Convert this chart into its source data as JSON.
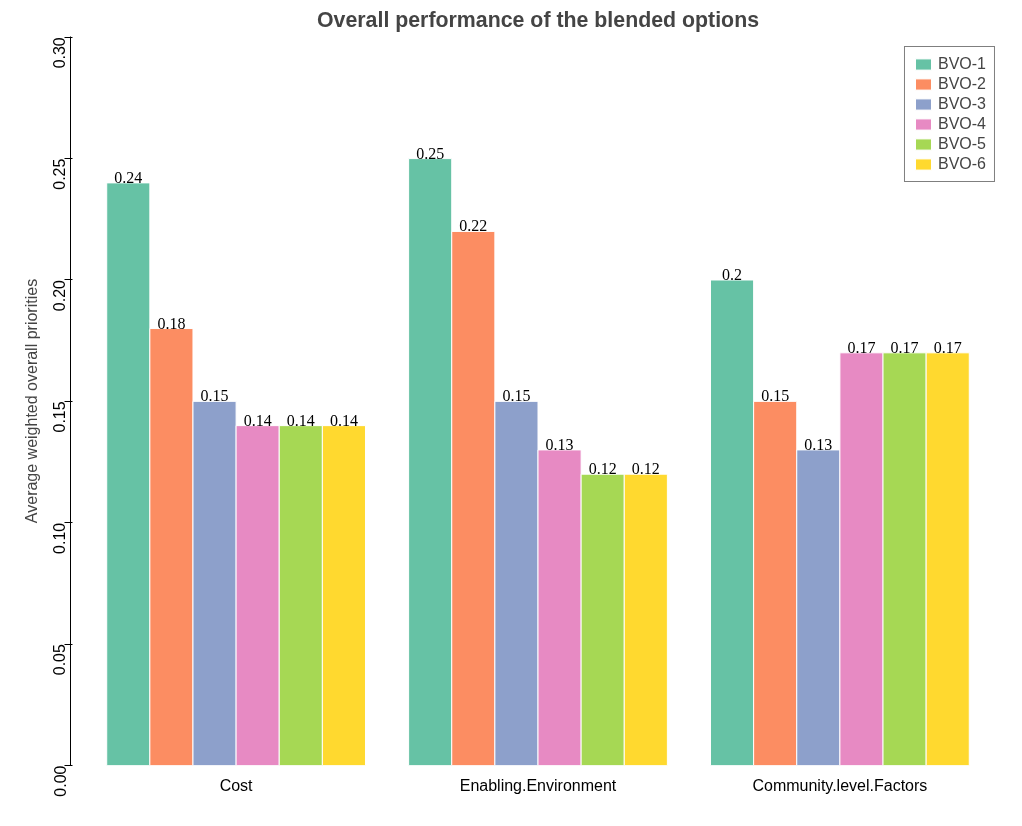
{
  "chart_data": {
    "type": "bar",
    "title": "Overall performance of the blended options",
    "ylabel": "Average weighted overall priorities",
    "categories": [
      "Cost",
      "Enabling.Environment",
      "Community.level.Factors"
    ],
    "series": [
      {
        "name": "BVO-1",
        "color": "#66c2a5",
        "values": [
          0.24,
          0.25,
          0.2
        ]
      },
      {
        "name": "BVO-2",
        "color": "#fc8d62",
        "values": [
          0.18,
          0.22,
          0.15
        ]
      },
      {
        "name": "BVO-3",
        "color": "#8da0cb",
        "values": [
          0.15,
          0.15,
          0.13
        ]
      },
      {
        "name": "BVO-4",
        "color": "#e78ac3",
        "values": [
          0.14,
          0.13,
          0.17
        ]
      },
      {
        "name": "BVO-5",
        "color": "#a6d854",
        "values": [
          0.14,
          0.12,
          0.17
        ]
      },
      {
        "name": "BVO-6",
        "color": "#ffd92f",
        "values": [
          0.14,
          0.12,
          0.17
        ]
      }
    ],
    "ylim": [
      0,
      0.3
    ],
    "yticks": [
      {
        "value": 0,
        "label": "0.00"
      },
      {
        "value": 0.05,
        "label": "0.05"
      },
      {
        "value": 0.1,
        "label": "0.10"
      },
      {
        "value": 0.15,
        "label": "0.15"
      },
      {
        "value": 0.2,
        "label": "0.20"
      },
      {
        "value": 0.25,
        "label": "0.25"
      },
      {
        "value": 0.3,
        "label": "0.30"
      }
    ],
    "data_labels": true,
    "legend": "top right",
    "grid": false
  }
}
